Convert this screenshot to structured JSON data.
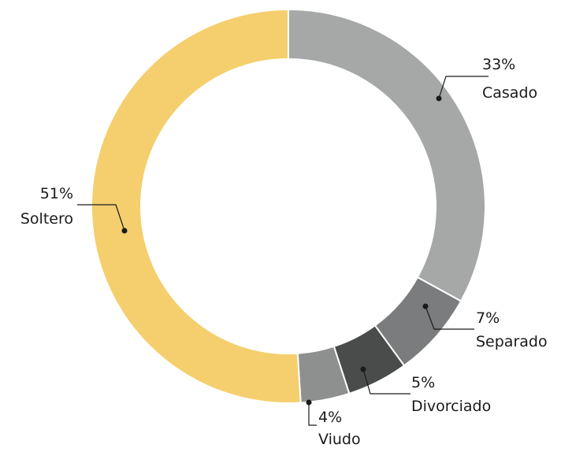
{
  "chart_data": {
    "type": "donut",
    "categories": [
      "Casado",
      "Separado",
      "Divorciado",
      "Viudo",
      "Soltero"
    ],
    "values": [
      33,
      7,
      5,
      4,
      51
    ],
    "value_labels": [
      "33%",
      "7%",
      "5%",
      "4%",
      "51%"
    ],
    "colors": [
      "#a6a8a8",
      "#7a7c7d",
      "#4a4c4c",
      "#8e9090",
      "#f5cf6e"
    ]
  }
}
